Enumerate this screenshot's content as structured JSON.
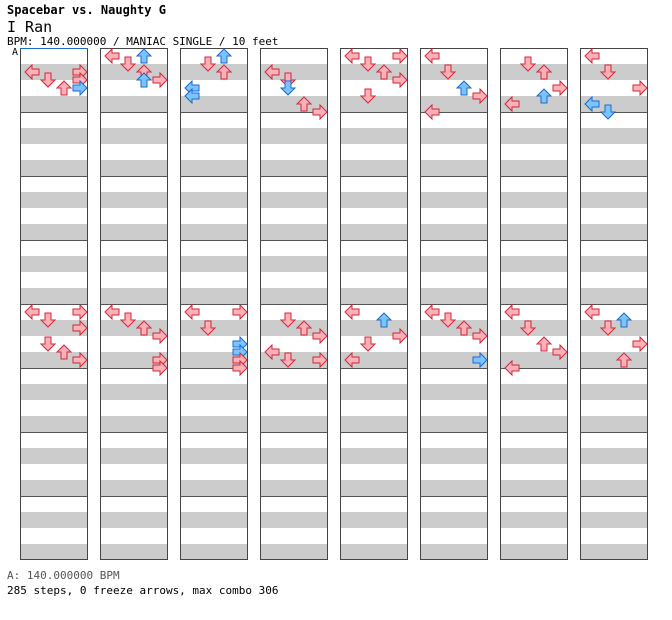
{
  "header": {
    "title": "Spacebar vs. Naughty G",
    "song": "I Ran",
    "info": "BPM: 140.000000 / MANIAC SINGLE / 10 feet",
    "marker": "A"
  },
  "footer": {
    "bpm": "A: 140.000000 BPM",
    "steps": "285 steps, 0 freeze arrows, max combo 306"
  },
  "colors": {
    "quarter_fill": "#ffb0b8",
    "quarter_stroke": "#d02838",
    "eighth_fill": "#7cc4ff",
    "eighth_stroke": "#1a6ad0",
    "band": "#cccccc",
    "border": "#000000"
  },
  "chart_data": {
    "type": "table",
    "lanes": [
      "left",
      "down",
      "up",
      "right"
    ],
    "columns": 8,
    "measures_per_column": 8,
    "rows_per_measure": 8,
    "arrows": [
      [
        [
          1,
          2,
          0,
          "r"
        ],
        [
          1,
          2,
          3,
          "r"
        ],
        [
          1,
          3,
          1,
          "r"
        ],
        [
          1,
          3,
          3,
          "r"
        ],
        [
          1,
          4,
          2,
          "r"
        ],
        [
          1,
          4,
          3,
          "b"
        ]
      ],
      [
        [
          2,
          0,
          0,
          "r"
        ],
        [
          2,
          0,
          3,
          "r"
        ],
        [
          2,
          1,
          1,
          "r"
        ],
        [
          2,
          2,
          3,
          "r"
        ],
        [
          2,
          4,
          1,
          "r"
        ],
        [
          2,
          5,
          2,
          "r"
        ],
        [
          2,
          6,
          3,
          "r"
        ]
      ],
      [
        [
          3,
          0,
          0,
          "r"
        ],
        [
          3,
          0,
          2,
          "b"
        ],
        [
          3,
          1,
          1,
          "r"
        ],
        [
          3,
          2,
          2,
          "r"
        ],
        [
          3,
          3,
          3,
          "r"
        ],
        [
          3,
          3,
          2,
          "b"
        ]
      ],
      [
        [
          4,
          0,
          0,
          "r"
        ],
        [
          4,
          1,
          1,
          "r"
        ],
        [
          4,
          2,
          2,
          "r"
        ],
        [
          4,
          3,
          3,
          "r"
        ],
        [
          4,
          6,
          3,
          "r"
        ],
        [
          4,
          7,
          3,
          "r"
        ]
      ],
      [
        [
          5,
          1,
          1,
          "r"
        ],
        [
          5,
          0,
          2,
          "b"
        ],
        [
          5,
          2,
          2,
          "r"
        ],
        [
          5,
          4,
          0,
          "b"
        ],
        [
          5,
          5,
          0,
          "b"
        ]
      ],
      [
        [
          6,
          0,
          0,
          "r"
        ],
        [
          6,
          0,
          3,
          "r"
        ],
        [
          6,
          2,
          1,
          "r"
        ],
        [
          6,
          4,
          3,
          "b"
        ],
        [
          6,
          5,
          3,
          "b"
        ],
        [
          6,
          6,
          3,
          "r"
        ],
        [
          6,
          7,
          3,
          "r"
        ]
      ],
      [
        [
          7,
          2,
          0,
          "r"
        ],
        [
          7,
          3,
          1,
          "r"
        ],
        [
          7,
          4,
          1,
          "b"
        ],
        [
          7,
          6,
          2,
          "r"
        ],
        [
          7,
          7,
          3,
          "r"
        ]
      ],
      [
        [
          8,
          1,
          1,
          "r"
        ],
        [
          8,
          2,
          2,
          "r"
        ],
        [
          8,
          3,
          3,
          "r"
        ],
        [
          8,
          5,
          0,
          "r"
        ],
        [
          8,
          6,
          1,
          "r"
        ],
        [
          8,
          6,
          3,
          "r"
        ]
      ],
      [
        [
          9,
          0,
          0,
          "r"
        ],
        [
          9,
          0,
          3,
          "r"
        ],
        [
          9,
          1,
          1,
          "r"
        ],
        [
          9,
          2,
          2,
          "r"
        ],
        [
          9,
          3,
          3,
          "r"
        ],
        [
          9,
          5,
          1,
          "r"
        ]
      ],
      [
        [
          10,
          0,
          0,
          "r"
        ],
        [
          10,
          1,
          2,
          "b"
        ],
        [
          10,
          3,
          3,
          "r"
        ],
        [
          10,
          4,
          1,
          "r"
        ],
        [
          10,
          6,
          0,
          "r"
        ]
      ],
      [
        [
          11,
          0,
          0,
          "r"
        ],
        [
          11,
          2,
          1,
          "r"
        ],
        [
          11,
          4,
          2,
          "b"
        ],
        [
          11,
          5,
          3,
          "r"
        ],
        [
          11,
          7,
          0,
          "r"
        ]
      ],
      [
        [
          12,
          0,
          0,
          "r"
        ],
        [
          12,
          1,
          1,
          "r"
        ],
        [
          12,
          2,
          2,
          "r"
        ],
        [
          12,
          3,
          3,
          "r"
        ],
        [
          12,
          6,
          3,
          "b"
        ]
      ],
      [
        [
          13,
          1,
          1,
          "r"
        ],
        [
          13,
          2,
          2,
          "r"
        ],
        [
          13,
          4,
          3,
          "r"
        ],
        [
          13,
          5,
          2,
          "b"
        ],
        [
          13,
          6,
          0,
          "r"
        ]
      ],
      [
        [
          14,
          0,
          0,
          "r"
        ],
        [
          14,
          2,
          1,
          "r"
        ],
        [
          14,
          4,
          2,
          "r"
        ],
        [
          14,
          5,
          3,
          "r"
        ],
        [
          14,
          7,
          0,
          "r"
        ]
      ],
      [
        [
          15,
          0,
          0,
          "r"
        ],
        [
          15,
          2,
          1,
          "r"
        ],
        [
          15,
          4,
          3,
          "r"
        ],
        [
          15,
          6,
          0,
          "b"
        ],
        [
          15,
          7,
          1,
          "b"
        ]
      ],
      [
        [
          16,
          0,
          0,
          "r"
        ],
        [
          16,
          1,
          2,
          "b"
        ],
        [
          16,
          2,
          1,
          "r"
        ],
        [
          16,
          4,
          3,
          "r"
        ],
        [
          16,
          6,
          2,
          "r"
        ]
      ]
    ]
  }
}
